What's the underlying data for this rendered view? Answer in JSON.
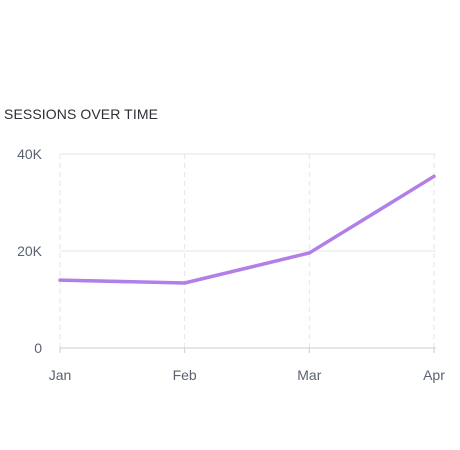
{
  "chart_data": {
    "type": "line",
    "title": "SESSIONS OVER TIME",
    "xlabel": "",
    "ylabel": "",
    "categories": [
      "Jan",
      "Feb",
      "Mar",
      "Apr"
    ],
    "series": [
      {
        "values": [
          14000,
          13400,
          19600,
          35400
        ]
      }
    ],
    "ylim": [
      0,
      40000
    ],
    "y_ticks": [
      {
        "value": 0,
        "label": "0"
      },
      {
        "value": 20000,
        "label": "20K"
      },
      {
        "value": 40000,
        "label": "40K"
      }
    ],
    "grid": true,
    "legend": "none",
    "colors": {
      "line": "#b27ee8",
      "grid": "#e3e6ee",
      "axis": "#c9cdd6",
      "tick_text": "#5a6270"
    }
  }
}
